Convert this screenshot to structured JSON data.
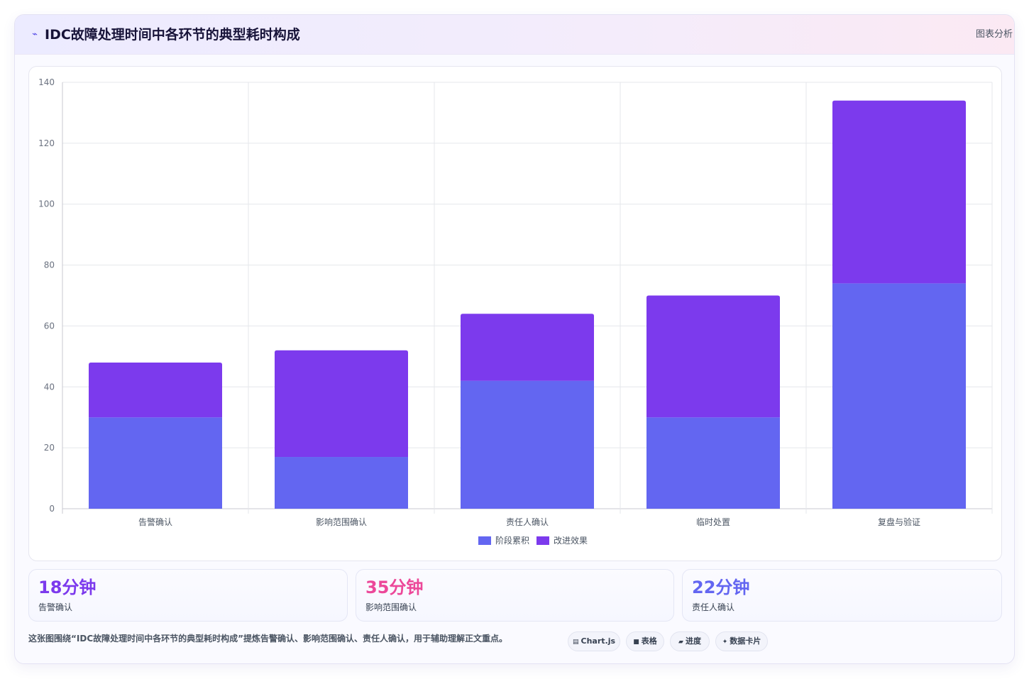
{
  "header": {
    "icon": "chart-line-icon",
    "title": "IDC故障处理时间中各环节的典型耗时构成",
    "right_label": "图表分析"
  },
  "chart_data": {
    "type": "bar",
    "stacked": true,
    "categories": [
      "告警确认",
      "影响范围确认",
      "责任人确认",
      "临时处置",
      "复盘与验证"
    ],
    "series": [
      {
        "name": "阶段累积",
        "color": "#6366f1",
        "values": [
          30,
          17,
          42,
          30,
          74
        ]
      },
      {
        "name": "改进效果",
        "color": "#7c3aed",
        "values": [
          18,
          35,
          22,
          40,
          60
        ]
      }
    ],
    "ylim": [
      0,
      140
    ],
    "yticks": [
      0,
      20,
      40,
      60,
      80,
      100,
      120,
      140
    ],
    "xlabel": "",
    "ylabel": "",
    "grid": true,
    "legend_position": "bottom"
  },
  "stats": [
    {
      "value": "18分钟",
      "label": "告警确认",
      "color": "#7c3aed"
    },
    {
      "value": "35分钟",
      "label": "影响范围确认",
      "color": "#ec4899"
    },
    {
      "value": "22分钟",
      "label": "责任人确认",
      "color": "#6366f1"
    }
  ],
  "caption": "这张图围绕“IDC故障处理时间中各环节的典型耗时构成”提炼告警确认、影响范围确认、责任人确认，用于辅助理解正文重点。",
  "chips": [
    {
      "icon": "chart-icon",
      "glyph": "▤",
      "label": "Chart.js"
    },
    {
      "icon": "table-icon",
      "glyph": "■",
      "label": "表格"
    },
    {
      "icon": "progress-icon",
      "glyph": "▰",
      "label": "进度"
    },
    {
      "icon": "sparkle-icon",
      "glyph": "✦",
      "label": "数据卡片"
    }
  ]
}
